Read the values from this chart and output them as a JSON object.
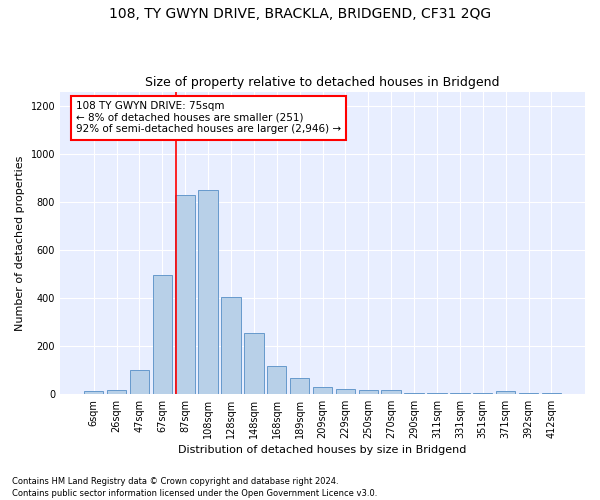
{
  "title_line1": "108, TY GWYN DRIVE, BRACKLA, BRIDGEND, CF31 2QG",
  "title_line2": "Size of property relative to detached houses in Bridgend",
  "xlabel": "Distribution of detached houses by size in Bridgend",
  "ylabel": "Number of detached properties",
  "footnote": "Contains HM Land Registry data © Crown copyright and database right 2024.\nContains public sector information licensed under the Open Government Licence v3.0.",
  "bar_labels": [
    "6sqm",
    "26sqm",
    "47sqm",
    "67sqm",
    "87sqm",
    "108sqm",
    "128sqm",
    "148sqm",
    "168sqm",
    "189sqm",
    "209sqm",
    "229sqm",
    "250sqm",
    "270sqm",
    "290sqm",
    "311sqm",
    "331sqm",
    "351sqm",
    "371sqm",
    "392sqm",
    "412sqm"
  ],
  "bar_values": [
    10,
    15,
    100,
    495,
    830,
    850,
    405,
    255,
    115,
    65,
    30,
    20,
    15,
    15,
    5,
    5,
    5,
    5,
    10,
    5,
    5
  ],
  "bar_color": "#b8d0e8",
  "bar_edge_color": "#6699cc",
  "annotation_line1": "108 TY GWYN DRIVE: 75sqm",
  "annotation_line2": "← 8% of detached houses are smaller (251)",
  "annotation_line3": "92% of semi-detached houses are larger (2,946) →",
  "annotation_box_facecolor": "white",
  "annotation_box_edgecolor": "red",
  "vline_color": "red",
  "vline_x_index": 3.6,
  "ylim": [
    0,
    1260
  ],
  "yticks": [
    0,
    200,
    400,
    600,
    800,
    1000,
    1200
  ],
  "background_color": "#e8eeff",
  "grid_color": "white",
  "title1_fontsize": 10,
  "title2_fontsize": 9,
  "xlabel_fontsize": 8,
  "ylabel_fontsize": 8,
  "tick_fontsize": 7,
  "annot_fontsize": 7.5,
  "footnote_fontsize": 6
}
